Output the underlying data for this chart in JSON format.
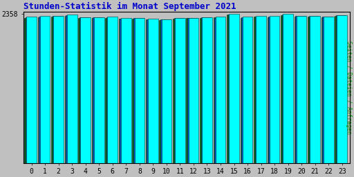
{
  "title": "Stunden-Statistik im Monat September 2021",
  "title_color": "#0000cc",
  "title_fontsize": 9,
  "ylabel_right": "Seiten / Dateien / Anfragen",
  "ylabel_right_color": "#009900",
  "categories": [
    0,
    1,
    2,
    3,
    4,
    5,
    6,
    7,
    8,
    9,
    10,
    11,
    12,
    13,
    14,
    15,
    16,
    17,
    18,
    19,
    20,
    21,
    22,
    23
  ],
  "values_cyan": [
    2310,
    2322,
    2326,
    2342,
    2306,
    2306,
    2309,
    2290,
    2293,
    2279,
    2269,
    2291,
    2296,
    2307,
    2312,
    2358,
    2312,
    2322,
    2320,
    2352,
    2327,
    2327,
    2317,
    2337
  ],
  "values_blue": [
    2306,
    2318,
    2322,
    2338,
    2302,
    2302,
    2305,
    2286,
    2289,
    2275,
    2265,
    2287,
    2292,
    2303,
    2297,
    2348,
    2300,
    2318,
    2315,
    2345,
    2322,
    2322,
    2310,
    2332
  ],
  "values_green": [
    2292,
    2307,
    2312,
    2322,
    2292,
    2292,
    2297,
    2277,
    2279,
    2267,
    2257,
    2280,
    2287,
    2292,
    2307,
    2342,
    2292,
    2310,
    2307,
    2340,
    2312,
    2317,
    2305,
    2324
  ],
  "bar_color_cyan": "#00ffff",
  "bar_color_blue": "#0055cc",
  "bar_color_green": "#006600",
  "bar_edge_color": "#003333",
  "ylim_min": 0,
  "ylim_max": 2390,
  "ytick_val": 2358,
  "ytick_label": "2358",
  "background_color": "#c0c0c0",
  "plot_bg_color": "#c0c0c0",
  "tick_fontsize": 7,
  "ylabel_right_fontsize": 6
}
